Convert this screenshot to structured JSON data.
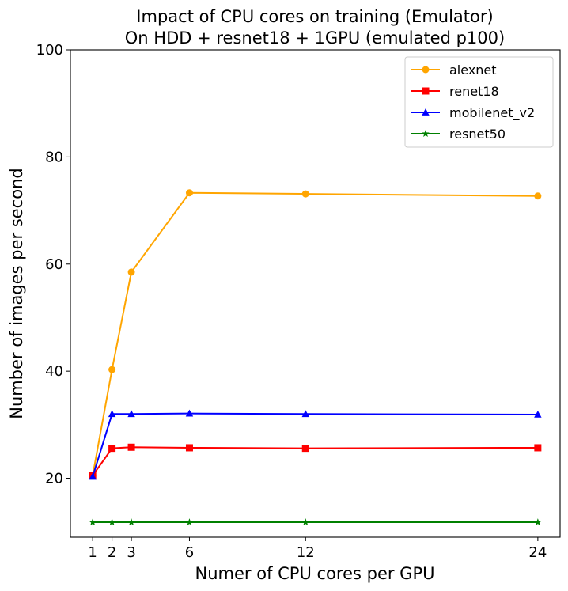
{
  "chart_data": {
    "type": "line",
    "title_line1": "Impact of CPU cores on training (Emulator)",
    "title_line2": "On HDD + resnet18 + 1GPU (emulated p100)",
    "xlabel": "Numer of CPU cores per GPU",
    "ylabel": "Number of images per second",
    "x": [
      1,
      2,
      3,
      6,
      12,
      24
    ],
    "xticks": [
      1,
      2,
      3,
      6,
      12,
      24
    ],
    "yticks": [
      20,
      40,
      60,
      80,
      100
    ],
    "xlim": [
      -0.15,
      25.15
    ],
    "ylim": [
      9,
      100
    ],
    "grid": false,
    "legend_position": "top-right",
    "series": [
      {
        "name": "alexnet",
        "color": "#FFA500",
        "marker": "circle",
        "values": [
          20.5,
          40.3,
          58.5,
          73.3,
          73.1,
          72.7
        ]
      },
      {
        "name": "renet18",
        "color": "#FF0000",
        "marker": "square",
        "values": [
          20.5,
          25.6,
          25.8,
          25.7,
          25.6,
          25.7
        ]
      },
      {
        "name": "mobilenet_v2",
        "color": "#0000FF",
        "marker": "triangle",
        "values": [
          20.3,
          32.0,
          32.0,
          32.1,
          32.0,
          31.9
        ]
      },
      {
        "name": "resnet50",
        "color": "#008000",
        "marker": "star",
        "values": [
          11.8,
          11.8,
          11.8,
          11.8,
          11.8,
          11.8
        ]
      }
    ]
  }
}
